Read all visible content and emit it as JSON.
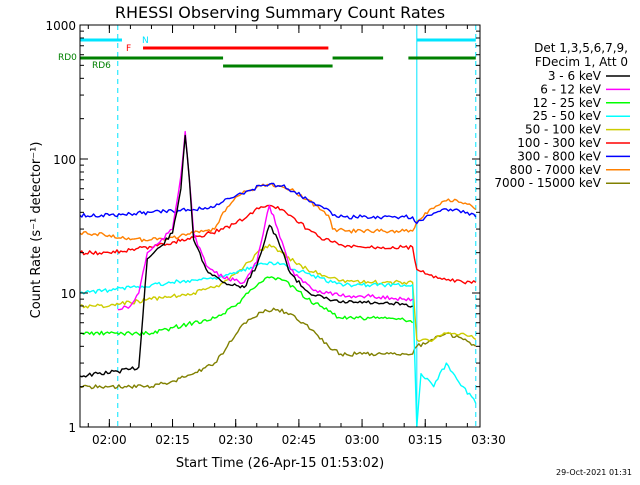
{
  "chart_data": {
    "type": "line",
    "title": "RHESSI Observing Summary Count Rates",
    "xlabel": "Start Time (26-Apr-15 01:53:02)",
    "ylabel": "Count Rate (s⁻¹ detector⁻¹)",
    "y_scale": "log",
    "ylim": [
      1,
      1000
    ],
    "xlim": [
      "01:53:02",
      "03:28:00"
    ],
    "grid": false,
    "legend_position": "right",
    "legend_header": [
      "Det 1,3,5,6,7,9,",
      "FDecim 1, Att 0"
    ],
    "timestamp": "29-Oct-2021 01:31",
    "x_ticks": [
      {
        "label": "02:00",
        "t": "02:00"
      },
      {
        "label": "02:15",
        "t": "02:15"
      },
      {
        "label": "02:30",
        "t": "02:30"
      },
      {
        "label": "02:45",
        "t": "02:45"
      },
      {
        "label": "03:00",
        "t": "03:00"
      },
      {
        "label": "03:15",
        "t": "03:15"
      },
      {
        "label": "03:30",
        "t": "03:30"
      }
    ],
    "y_ticks": [
      {
        "label": "1",
        "value": 1
      },
      {
        "label": "10",
        "value": 10
      },
      {
        "label": "100",
        "value": 100
      },
      {
        "label": "1000",
        "value": 1000
      }
    ],
    "flags": [
      {
        "label": "N",
        "color": "#00e5ff",
        "segments": [
          [
            "01:53",
            "02:03"
          ],
          [
            "03:13",
            "03:27"
          ]
        ]
      },
      {
        "label": "F",
        "color": "#ff0000",
        "segments": [
          [
            "02:08",
            "02:52"
          ]
        ]
      },
      {
        "label": "RD0",
        "color": "#008000",
        "segments": [
          [
            "01:53",
            "02:27"
          ],
          [
            "02:53",
            "03:05"
          ],
          [
            "03:11",
            "03:27"
          ]
        ]
      },
      {
        "label": "RD6",
        "color": "#008000",
        "segments": [
          [
            "02:27",
            "02:53"
          ]
        ]
      }
    ],
    "night_markers": [
      "02:02",
      "03:27"
    ],
    "saa_markers": [
      "03:13"
    ],
    "series": [
      {
        "name": "3 - 6 keV",
        "color": "#000000",
        "t": [
          "01:53",
          "02:02",
          "02:05",
          "02:07",
          "02:09",
          "02:12",
          "02:15",
          "02:17",
          "02:18",
          "02:19",
          "02:20",
          "02:23",
          "02:27",
          "02:32",
          "02:35",
          "02:38",
          "02:40",
          "02:43",
          "02:46",
          "02:49",
          "02:52",
          "02:55",
          "02:58",
          "03:01",
          "03:04",
          "03:07",
          "03:10",
          "03:12"
        ],
        "values": [
          2.4,
          2.6,
          2.7,
          2.8,
          18,
          22,
          28,
          60,
          150,
          70,
          25,
          15,
          12,
          11,
          16,
          32,
          25,
          14,
          11,
          9.5,
          9,
          8.5,
          8.5,
          8.5,
          8.3,
          8.3,
          8.2,
          8
        ]
      },
      {
        "name": "6 - 12 keV",
        "color": "#ff00ff",
        "t": [
          "02:02",
          "02:05",
          "02:07",
          "02:09",
          "02:12",
          "02:15",
          "02:17",
          "02:18",
          "02:19",
          "02:20",
          "02:23",
          "02:27",
          "02:32",
          "02:35",
          "02:38",
          "02:40",
          "02:43",
          "02:46",
          "02:49",
          "02:52",
          "02:55",
          "02:58",
          "03:01",
          "03:04",
          "03:07",
          "03:10",
          "03:12"
        ],
        "values": [
          7.5,
          8,
          10,
          20,
          24,
          30,
          75,
          160,
          70,
          28,
          16,
          13,
          12,
          17,
          45,
          30,
          15,
          12,
          10.5,
          10,
          9.5,
          9.5,
          9.5,
          9.3,
          9.2,
          9,
          9
        ]
      },
      {
        "name": "12 - 25 keV",
        "color": "#00ff00",
        "t": [
          "01:53",
          "02:00",
          "02:05",
          "02:10",
          "02:15",
          "02:20",
          "02:25",
          "02:27",
          "02:30",
          "02:33",
          "02:36",
          "02:38",
          "02:41",
          "02:44",
          "02:47",
          "02:50",
          "02:53",
          "02:55",
          "03:00",
          "03:05",
          "03:10",
          "03:12"
        ],
        "values": [
          5,
          5,
          5,
          5,
          5.5,
          6,
          6.5,
          7,
          8,
          10,
          12,
          13,
          12.5,
          11,
          9,
          8,
          7,
          6.5,
          6.5,
          6.5,
          6.3,
          6
        ]
      },
      {
        "name": "25 - 50 keV",
        "color": "#00ffff",
        "t": [
          "01:53",
          "02:00",
          "02:05",
          "02:10",
          "02:15",
          "02:20",
          "02:25",
          "02:30",
          "02:35",
          "02:38",
          "02:41",
          "02:44",
          "02:47",
          "02:50",
          "02:53",
          "02:56",
          "03:00",
          "03:05",
          "03:10",
          "03:12",
          "03:13",
          "03:14",
          "03:17",
          "03:20",
          "03:24",
          "03:27"
        ],
        "values": [
          10,
          10.5,
          11,
          11.5,
          12,
          12.5,
          13,
          14,
          16,
          17,
          16.5,
          15,
          14,
          13,
          12,
          11.5,
          11.5,
          11.5,
          11.5,
          11.5,
          1,
          2.5,
          2,
          3,
          2,
          1.5
        ]
      },
      {
        "name": "50 - 100 keV",
        "color": "#cccc00",
        "t": [
          "01:53",
          "02:00",
          "02:05",
          "02:10",
          "02:15",
          "02:20",
          "02:25",
          "02:27",
          "02:30",
          "02:33",
          "02:36",
          "02:38",
          "02:41",
          "02:44",
          "02:47",
          "02:50",
          "02:53",
          "02:56",
          "03:00",
          "03:05",
          "03:10",
          "03:12",
          "03:13",
          "03:17",
          "03:20",
          "03:24",
          "03:27"
        ],
        "values": [
          8,
          8,
          8.5,
          9,
          9.5,
          10,
          11,
          12,
          14,
          17,
          21,
          23,
          20,
          17,
          15,
          14,
          13,
          12,
          12,
          12,
          12,
          12,
          4.5,
          4.5,
          5,
          5,
          4.5
        ]
      },
      {
        "name": "100 - 300 keV",
        "color": "#ff0000",
        "t": [
          "01:53",
          "02:00",
          "02:05",
          "02:10",
          "02:15",
          "02:20",
          "02:24",
          "02:27",
          "02:30",
          "02:33",
          "02:36",
          "02:38",
          "02:41",
          "02:44",
          "02:47",
          "02:50",
          "02:53",
          "02:56",
          "03:00",
          "03:05",
          "03:10",
          "03:12",
          "03:13",
          "03:17",
          "03:20",
          "03:24",
          "03:27"
        ],
        "values": [
          20,
          20,
          21,
          22,
          24,
          26,
          28,
          30,
          33,
          38,
          44,
          45,
          42,
          36,
          30,
          26,
          24,
          22,
          22,
          22,
          22,
          22,
          15,
          13,
          12.5,
          12,
          12
        ]
      },
      {
        "name": "300 - 800 keV",
        "color": "#0000ff",
        "t": [
          "01:53",
          "02:00",
          "02:05",
          "02:10",
          "02:15",
          "02:20",
          "02:25",
          "02:27",
          "02:30",
          "02:33",
          "02:36",
          "02:38",
          "02:41",
          "02:44",
          "02:47",
          "02:50",
          "02:52",
          "02:53",
          "02:56",
          "03:00",
          "03:05",
          "03:10",
          "03:12",
          "03:13",
          "03:16",
          "03:19",
          "03:22",
          "03:25",
          "03:27"
        ],
        "values": [
          38,
          38,
          39,
          40,
          41,
          42,
          44,
          48,
          53,
          58,
          63,
          65,
          63,
          57,
          50,
          45,
          42,
          38,
          37,
          37,
          37,
          37,
          37,
          33,
          38,
          42,
          42,
          40,
          37
        ]
      },
      {
        "name": "800 - 7000 keV",
        "color": "#ff8000",
        "t": [
          "01:53",
          "02:00",
          "02:05",
          "02:10",
          "02:15",
          "02:20",
          "02:25",
          "02:27",
          "02:30",
          "02:33",
          "02:36",
          "02:38",
          "02:41",
          "02:44",
          "02:47",
          "02:50",
          "02:52",
          "02:53",
          "02:56",
          "03:00",
          "03:05",
          "03:10",
          "03:12",
          "03:13",
          "03:16",
          "03:19",
          "03:22",
          "03:25",
          "03:27"
        ],
        "values": [
          28,
          27,
          25,
          25,
          26,
          28,
          30,
          40,
          52,
          58,
          63,
          64,
          62,
          57,
          50,
          42,
          38,
          30,
          29,
          29,
          29,
          29,
          29,
          34,
          42,
          48,
          50,
          46,
          42
        ]
      },
      {
        "name": "7000 - 15000 keV",
        "color": "#808000",
        "t": [
          "01:53",
          "02:00",
          "02:05",
          "02:10",
          "02:15",
          "02:20",
          "02:25",
          "02:28",
          "02:31",
          "02:34",
          "02:37",
          "02:40",
          "02:43",
          "02:46",
          "02:49",
          "02:52",
          "02:55",
          "03:00",
          "03:05",
          "03:10",
          "03:12",
          "03:13",
          "03:17",
          "03:20",
          "03:24",
          "03:27"
        ],
        "values": [
          2,
          2,
          2,
          2,
          2.2,
          2.5,
          3,
          4,
          5.5,
          6.5,
          7.5,
          7.5,
          7,
          6,
          5,
          4,
          3.5,
          3.5,
          3.5,
          3.5,
          3.5,
          4,
          4.5,
          5,
          4.5,
          4
        ]
      },
      {
        "name": "Det 1,3,5,6,7,9,",
        "color": "#00e5ff",
        "t": [],
        "values": []
      }
    ]
  }
}
